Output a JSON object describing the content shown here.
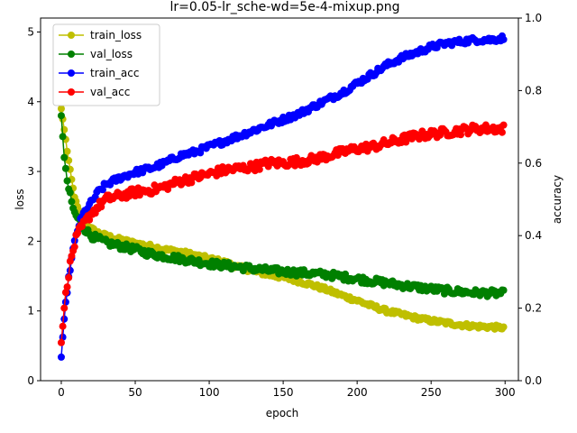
{
  "chart_data": {
    "type": "line",
    "title": "lr=0.05-lr_sche-wd=5e-4-mixup.png",
    "xlabel": "epoch",
    "ylabel_left": "loss",
    "ylabel_right": "accuracy",
    "xlim": [
      -14,
      309
    ],
    "ylim_left": [
      0,
      5.2
    ],
    "ylim_right": [
      0,
      1.0
    ],
    "xticks": [
      0,
      50,
      100,
      150,
      200,
      250,
      300
    ],
    "yticks_left": [
      0,
      1,
      2,
      3,
      4,
      5
    ],
    "yticks_right": [
      0.0,
      0.2,
      0.4,
      0.6,
      0.8,
      1.0
    ],
    "legend_position": "top-left",
    "grid": false,
    "epochs": 300,
    "series": [
      {
        "name": "train_loss",
        "axis": "left",
        "color": "#bfbf00",
        "anchors": [
          [
            0,
            3.9
          ],
          [
            2,
            3.6
          ],
          [
            4,
            3.3
          ],
          [
            6,
            3.0
          ],
          [
            8,
            2.75
          ],
          [
            10,
            2.55
          ],
          [
            12,
            2.42
          ],
          [
            15,
            2.3
          ],
          [
            20,
            2.18
          ],
          [
            25,
            2.12
          ],
          [
            30,
            2.08
          ],
          [
            40,
            2.02
          ],
          [
            50,
            1.97
          ],
          [
            60,
            1.93
          ],
          [
            70,
            1.88
          ],
          [
            80,
            1.85
          ],
          [
            90,
            1.8
          ],
          [
            100,
            1.75
          ],
          [
            110,
            1.7
          ],
          [
            120,
            1.63
          ],
          [
            130,
            1.57
          ],
          [
            140,
            1.52
          ],
          [
            150,
            1.48
          ],
          [
            160,
            1.43
          ],
          [
            170,
            1.37
          ],
          [
            180,
            1.3
          ],
          [
            190,
            1.22
          ],
          [
            200,
            1.15
          ],
          [
            210,
            1.07
          ],
          [
            220,
            1.0
          ],
          [
            230,
            0.95
          ],
          [
            240,
            0.9
          ],
          [
            250,
            0.86
          ],
          [
            260,
            0.83
          ],
          [
            270,
            0.8
          ],
          [
            280,
            0.78
          ],
          [
            290,
            0.77
          ],
          [
            299,
            0.76
          ]
        ],
        "noise": 0.03
      },
      {
        "name": "val_loss",
        "axis": "left",
        "color": "#008000",
        "anchors": [
          [
            0,
            3.8
          ],
          [
            1,
            3.5
          ],
          [
            2,
            3.2
          ],
          [
            3,
            3.0
          ],
          [
            5,
            2.75
          ],
          [
            7,
            2.55
          ],
          [
            9,
            2.4
          ],
          [
            12,
            2.3
          ],
          [
            15,
            2.2
          ],
          [
            20,
            2.08
          ],
          [
            30,
            1.98
          ],
          [
            40,
            1.93
          ],
          [
            50,
            1.88
          ],
          [
            60,
            1.82
          ],
          [
            80,
            1.75
          ],
          [
            100,
            1.68
          ],
          [
            120,
            1.63
          ],
          [
            140,
            1.58
          ],
          [
            160,
            1.55
          ],
          [
            180,
            1.52
          ],
          [
            200,
            1.46
          ],
          [
            220,
            1.4
          ],
          [
            240,
            1.34
          ],
          [
            260,
            1.29
          ],
          [
            280,
            1.26
          ],
          [
            299,
            1.25
          ]
        ],
        "noise": 0.05
      },
      {
        "name": "train_acc",
        "axis": "right",
        "color": "#0000ff",
        "anchors": [
          [
            0,
            0.065
          ],
          [
            1,
            0.12
          ],
          [
            2,
            0.17
          ],
          [
            4,
            0.25
          ],
          [
            6,
            0.31
          ],
          [
            8,
            0.36
          ],
          [
            10,
            0.4
          ],
          [
            12,
            0.43
          ],
          [
            15,
            0.46
          ],
          [
            20,
            0.49
          ],
          [
            25,
            0.52
          ],
          [
            30,
            0.54
          ],
          [
            40,
            0.56
          ],
          [
            50,
            0.575
          ],
          [
            60,
            0.585
          ],
          [
            70,
            0.6
          ],
          [
            80,
            0.62
          ],
          [
            90,
            0.63
          ],
          [
            100,
            0.645
          ],
          [
            110,
            0.66
          ],
          [
            120,
            0.675
          ],
          [
            130,
            0.69
          ],
          [
            140,
            0.705
          ],
          [
            150,
            0.72
          ],
          [
            160,
            0.735
          ],
          [
            170,
            0.755
          ],
          [
            180,
            0.775
          ],
          [
            190,
            0.795
          ],
          [
            200,
            0.82
          ],
          [
            210,
            0.845
          ],
          [
            220,
            0.87
          ],
          [
            230,
            0.89
          ],
          [
            240,
            0.905
          ],
          [
            250,
            0.92
          ],
          [
            260,
            0.93
          ],
          [
            270,
            0.935
          ],
          [
            280,
            0.94
          ],
          [
            290,
            0.94
          ],
          [
            299,
            0.945
          ]
        ],
        "noise": 0.008
      },
      {
        "name": "val_acc",
        "axis": "right",
        "color": "#ff0000",
        "anchors": [
          [
            0,
            0.105
          ],
          [
            1,
            0.15
          ],
          [
            2,
            0.2
          ],
          [
            4,
            0.27
          ],
          [
            6,
            0.32
          ],
          [
            8,
            0.36
          ],
          [
            10,
            0.39
          ],
          [
            12,
            0.41
          ],
          [
            15,
            0.43
          ],
          [
            20,
            0.46
          ],
          [
            25,
            0.48
          ],
          [
            30,
            0.5
          ],
          [
            40,
            0.51
          ],
          [
            50,
            0.52
          ],
          [
            60,
            0.525
          ],
          [
            70,
            0.535
          ],
          [
            80,
            0.55
          ],
          [
            90,
            0.56
          ],
          [
            100,
            0.57
          ],
          [
            110,
            0.58
          ],
          [
            120,
            0.585
          ],
          [
            130,
            0.59
          ],
          [
            140,
            0.6
          ],
          [
            150,
            0.6
          ],
          [
            160,
            0.605
          ],
          [
            170,
            0.61
          ],
          [
            180,
            0.62
          ],
          [
            190,
            0.63
          ],
          [
            200,
            0.64
          ],
          [
            210,
            0.645
          ],
          [
            220,
            0.655
          ],
          [
            230,
            0.665
          ],
          [
            240,
            0.675
          ],
          [
            250,
            0.68
          ],
          [
            260,
            0.685
          ],
          [
            270,
            0.69
          ],
          [
            280,
            0.695
          ],
          [
            290,
            0.695
          ],
          [
            299,
            0.695
          ]
        ],
        "noise": 0.012
      }
    ]
  }
}
